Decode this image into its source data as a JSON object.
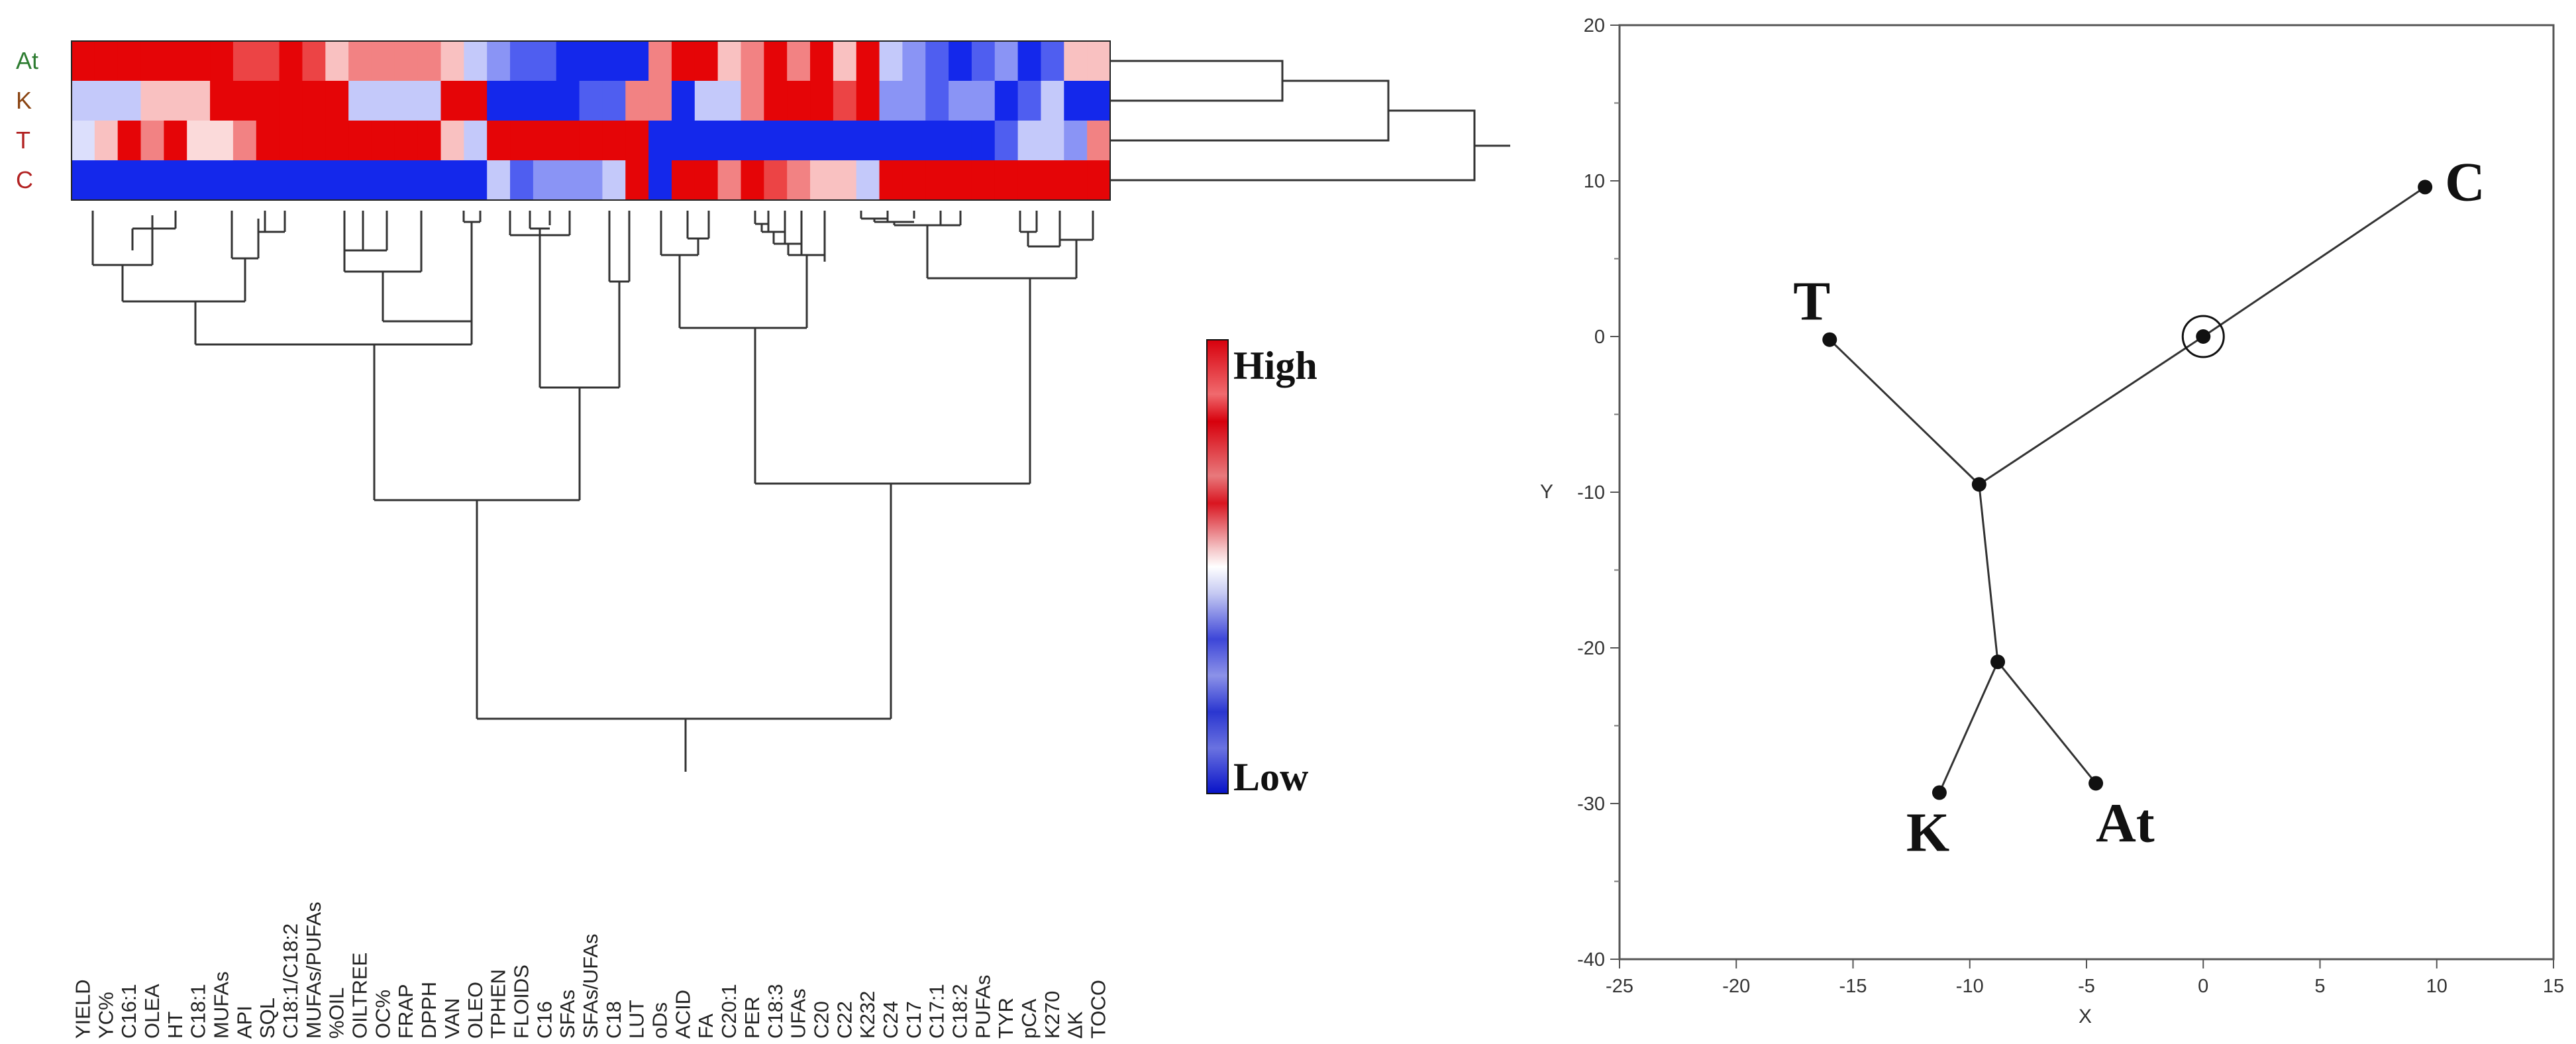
{
  "chart_data": [
    {
      "type": "heatmap",
      "title": "",
      "rows": [
        "At",
        "K",
        "T",
        "C"
      ],
      "row_label_colors": [
        "#2e7d32",
        "#8b4513",
        "#b22222",
        "#b22222"
      ],
      "columns": [
        "YIELD",
        "YC%",
        "C16:1",
        "OLEA",
        "HT",
        "C18:1",
        "MUFAs",
        "API",
        "SQL",
        "C18:1/C18:2",
        "MUFAs/PUFAs",
        "%OIL",
        "OILTREE",
        "OC%",
        "FRAP",
        "DPPH",
        "VAN",
        "OLEO",
        "TPHEN",
        "FLOIDS",
        "C16",
        "SFAs",
        "SFAs/UFAs",
        "C18",
        "LUT",
        "oDs",
        "ACID",
        "FA",
        "C20:1",
        "PER",
        "C18:3",
        "UFAs",
        "C20",
        "C22",
        "K232",
        "C24",
        "C17",
        "C17:1",
        "C18:2",
        "PUFAs",
        "TYR",
        "pCA",
        "K270",
        "ΔK",
        "TOCO"
      ],
      "values": [
        [
          2,
          2,
          2,
          2,
          2,
          2,
          2,
          1.5,
          1.5,
          2,
          1.5,
          0.5,
          1,
          1,
          1,
          1,
          0.5,
          -0.5,
          -1,
          -1.5,
          -1.5,
          -2,
          -2,
          -2,
          -2,
          1,
          2,
          2,
          0.5,
          1,
          2,
          1,
          2,
          0.5,
          2,
          -0.5,
          -1,
          -1.5,
          -2,
          -1.5,
          -1,
          -2,
          -1.5,
          0.5,
          0.5
        ],
        [
          -0.5,
          -0.5,
          -0.5,
          0.5,
          0.5,
          0.5,
          2,
          2,
          2,
          2,
          2,
          2,
          -0.5,
          -0.5,
          -0.5,
          -0.5,
          2,
          2,
          -2,
          -2,
          -2,
          -2,
          -1.5,
          -1.5,
          1,
          1,
          -2,
          -0.5,
          -0.5,
          1,
          2,
          2,
          2,
          1.5,
          2,
          -1,
          -1,
          -1.5,
          -1,
          -1,
          -2,
          -1.5,
          -0.5,
          -2,
          -2
        ],
        [
          -0.3,
          0.5,
          2,
          1,
          2,
          0.3,
          0.3,
          1,
          2,
          2,
          2,
          2,
          2,
          2,
          2,
          2,
          0.5,
          -0.5,
          2,
          2,
          2,
          2,
          2,
          2,
          2,
          -2,
          -2,
          -2,
          -2,
          -2,
          -2,
          -2,
          -2,
          -2,
          -2,
          -2,
          -2,
          -2,
          -2,
          -2,
          -1.5,
          -0.5,
          -0.5,
          -1,
          1
        ],
        [
          -2,
          -2,
          -2,
          -2,
          -2,
          -2,
          -2,
          -2,
          -2,
          -2,
          -2,
          -2,
          -2,
          -2,
          -2,
          -2,
          -2,
          -2,
          -0.5,
          -1.5,
          -1,
          -1,
          -1,
          -0.5,
          2,
          -2,
          2,
          2,
          1,
          2,
          1.5,
          1,
          0.5,
          0.5,
          -0.5,
          2,
          2,
          2,
          2,
          2,
          2,
          2,
          2,
          2,
          2
        ]
      ],
      "legend": {
        "high_label": "High",
        "low_label": "Low",
        "position": "right"
      }
    },
    {
      "type": "scatter",
      "title": "",
      "xlabel": "X",
      "ylabel": "Y",
      "xlim": [
        -25,
        15
      ],
      "ylim": [
        -40,
        20
      ],
      "xticks": [
        -25,
        -20,
        -15,
        -10,
        -5,
        0,
        5,
        10,
        15
      ],
      "yticks": [
        20,
        10,
        0,
        -10,
        -20,
        -30,
        -40
      ],
      "points": [
        {
          "label": "C",
          "x": 9.5,
          "y": 9.6
        },
        {
          "label": "T",
          "x": -16.0,
          "y": -0.2
        },
        {
          "label": "K",
          "x": -11.3,
          "y": -29.3
        },
        {
          "label": "At",
          "x": -4.6,
          "y": -28.7
        },
        {
          "label": "",
          "x": 0.0,
          "y": 0.0
        },
        {
          "label": "",
          "x": -9.6,
          "y": -9.5
        },
        {
          "label": "",
          "x": -8.8,
          "y": -20.9
        }
      ],
      "edges": [
        [
          4,
          0
        ],
        [
          4,
          5
        ],
        [
          5,
          1
        ],
        [
          5,
          6
        ],
        [
          6,
          2
        ],
        [
          6,
          3
        ]
      ],
      "center_marker": {
        "x": 0.0,
        "y": 0.0
      }
    }
  ]
}
